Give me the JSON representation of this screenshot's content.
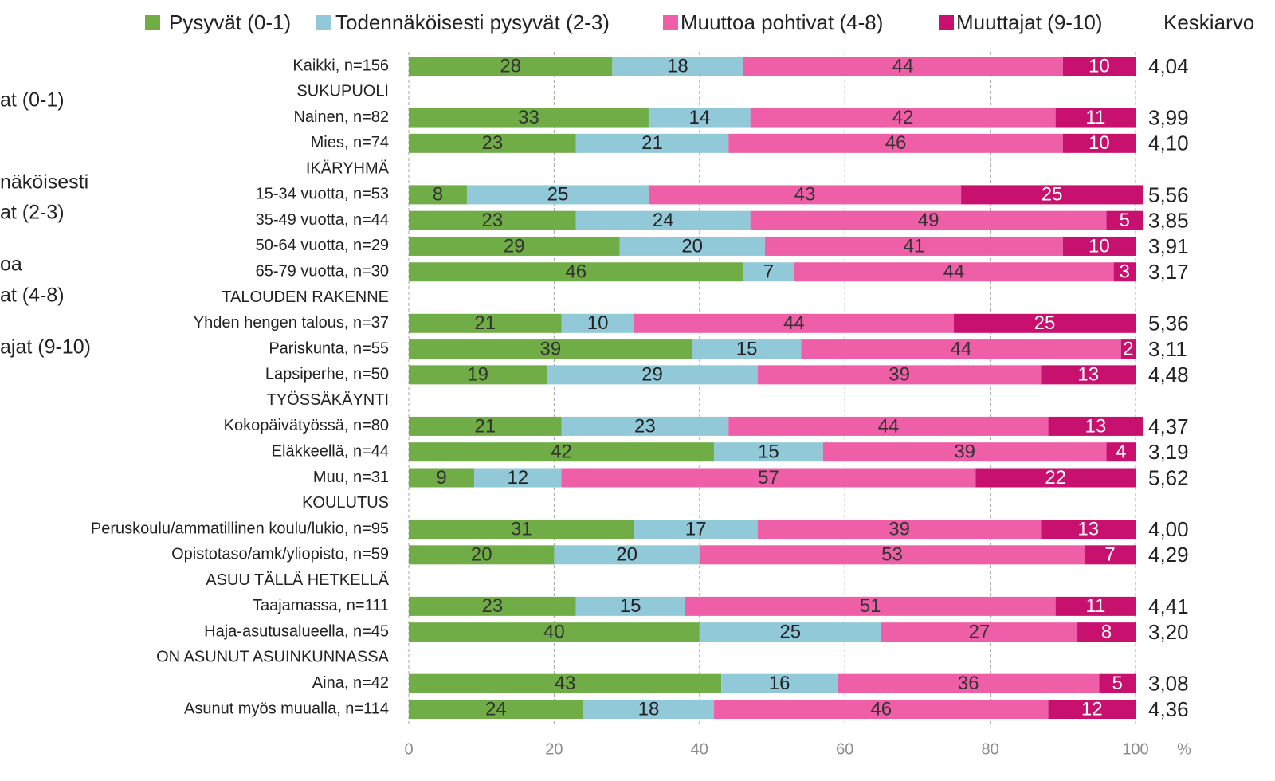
{
  "chart_data": {
    "type": "stacked_barh",
    "categories": [
      "Kaikki, n=156",
      "SUKUPUOLI",
      "Nainen, n=82",
      "Mies, n=74",
      "IKÄRYHMÄ",
      "15-34 vuotta, n=53",
      "35-49 vuotta, n=44",
      "50-64 vuotta, n=29",
      "65-79 vuotta, n=30",
      "TALOUDEN RAKENNE",
      "Yhden hengen talous, n=37",
      "Pariskunta, n=55",
      "Lapsiperhe, n=50",
      "TYÖSSÄKÄYNTI",
      "Kokopäivätyössä, n=80",
      "Eläkkeellä, n=44",
      "Muu, n=31",
      "KOULUTUS",
      "Peruskoulu/ammatillinen koulu/lukio, n=95",
      "Opistotaso/amk/yliopisto, n=59",
      "ASUU TÄLLÄ HETKELLÄ",
      "Taajamassa, n=111",
      "Haja-asutusalueella, n=45",
      "ON ASUNUT ASUINKUNNASSA",
      "Aina, n=42",
      "Asunut myös muualla, n=114"
    ],
    "series": [
      {
        "name": "Pysyvät (0-1)",
        "color": "#70ad47",
        "label_color": "#333333",
        "values": [
          28,
          null,
          33,
          23,
          null,
          8,
          23,
          29,
          46,
          null,
          21,
          39,
          19,
          null,
          21,
          42,
          9,
          null,
          31,
          20,
          null,
          23,
          40,
          null,
          43,
          24
        ]
      },
      {
        "name": "Todennäköisesti pysyvät (2-3)",
        "color": "#92c9d8",
        "label_color": "#222222",
        "values": [
          18,
          null,
          14,
          21,
          null,
          25,
          24,
          20,
          7,
          null,
          10,
          15,
          29,
          null,
          23,
          15,
          12,
          null,
          17,
          20,
          null,
          15,
          25,
          null,
          16,
          18
        ]
      },
      {
        "name": "Muuttoa pohtivat (4-8)",
        "color": "#ee5fa7",
        "label_color": "#333333",
        "values": [
          44,
          null,
          42,
          46,
          null,
          43,
          49,
          41,
          44,
          null,
          44,
          44,
          39,
          null,
          44,
          39,
          57,
          null,
          39,
          53,
          null,
          51,
          27,
          null,
          36,
          46
        ]
      },
      {
        "name": "Muuttajat (9-10)",
        "color": "#c8106e",
        "label_color": "#ffffff",
        "values": [
          10,
          null,
          11,
          10,
          null,
          25,
          5,
          10,
          3,
          null,
          25,
          2,
          13,
          null,
          13,
          4,
          22,
          null,
          13,
          7,
          null,
          11,
          8,
          null,
          5,
          12
        ]
      }
    ],
    "mean": {
      "name": "Keskiarvo",
      "values": [
        4.04,
        null,
        3.99,
        4.1,
        null,
        5.56,
        3.85,
        3.91,
        3.17,
        null,
        5.36,
        3.11,
        4.48,
        null,
        4.37,
        3.19,
        5.62,
        null,
        4.0,
        4.29,
        null,
        4.41,
        3.2,
        null,
        3.08,
        4.36
      ],
      "value_labels": [
        "4,04",
        null,
        "3,99",
        "4,10",
        null,
        "5,56",
        "3,85",
        "3,91",
        "3,17",
        null,
        "5,36",
        "3,11",
        "4,48",
        null,
        "4,37",
        "3,19",
        "5,62",
        null,
        "4,00",
        "4,29",
        null,
        "4,41",
        "3,20",
        null,
        "3,08",
        "4,36"
      ]
    },
    "xlim": [
      0,
      100
    ],
    "xticks": [
      0,
      20,
      40,
      60,
      80,
      100
    ],
    "xlabel": "%",
    "grid": true,
    "clipped_legend_texts": [
      "at (0-1)",
      "näköisesti",
      "at (2-3)",
      "oa",
      "at (4-8)",
      "ajat (9-10)"
    ]
  }
}
